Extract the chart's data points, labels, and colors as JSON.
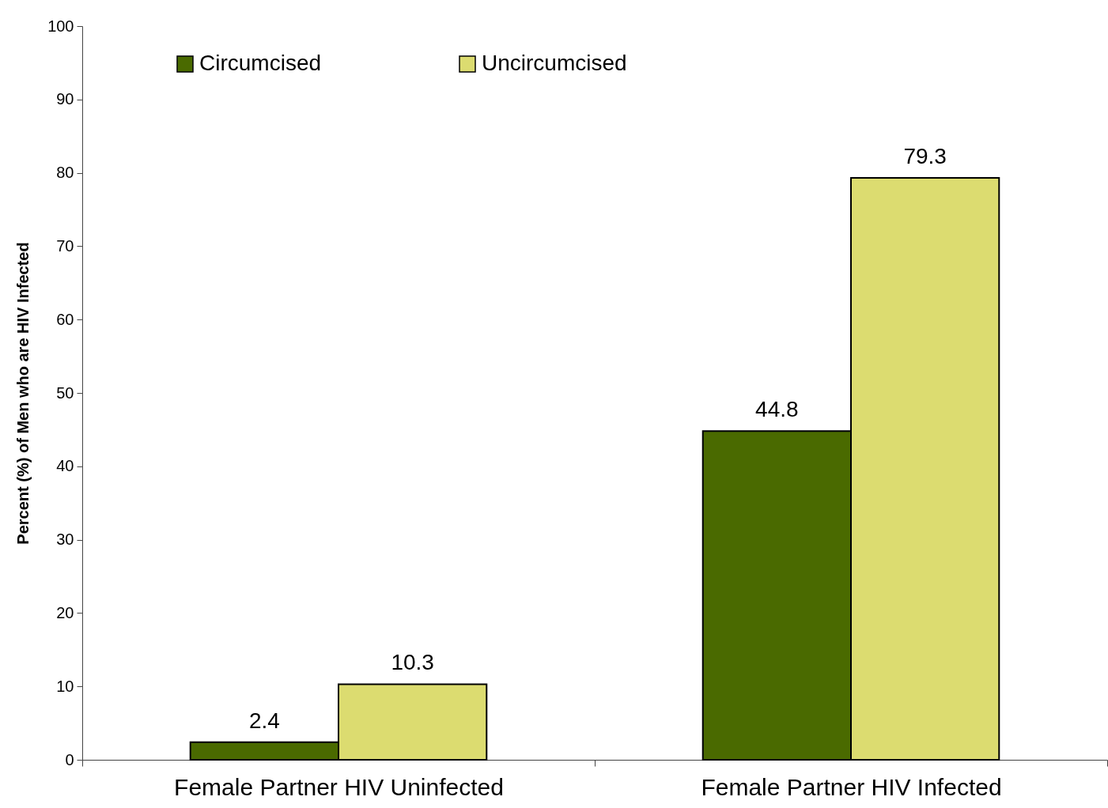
{
  "chart_data": {
    "type": "bar",
    "ylabel": "Percent (%) of Men who are HIV Infected",
    "categories": [
      "Female Partner HIV Uninfected",
      "Female Partner HIV Infected"
    ],
    "series": [
      {
        "name": "Circumcised",
        "color": "#4a6a00",
        "values": [
          2.4,
          44.8
        ]
      },
      {
        "name": "Uncircumcised",
        "color": "#dcdc70",
        "values": [
          10.3,
          79.3
        ]
      }
    ],
    "ylim": [
      0,
      100
    ],
    "yticks": [
      0,
      10,
      20,
      30,
      40,
      50,
      60,
      70,
      80,
      90,
      100
    ],
    "grid": false,
    "legend": "top left",
    "data_labels": true
  }
}
